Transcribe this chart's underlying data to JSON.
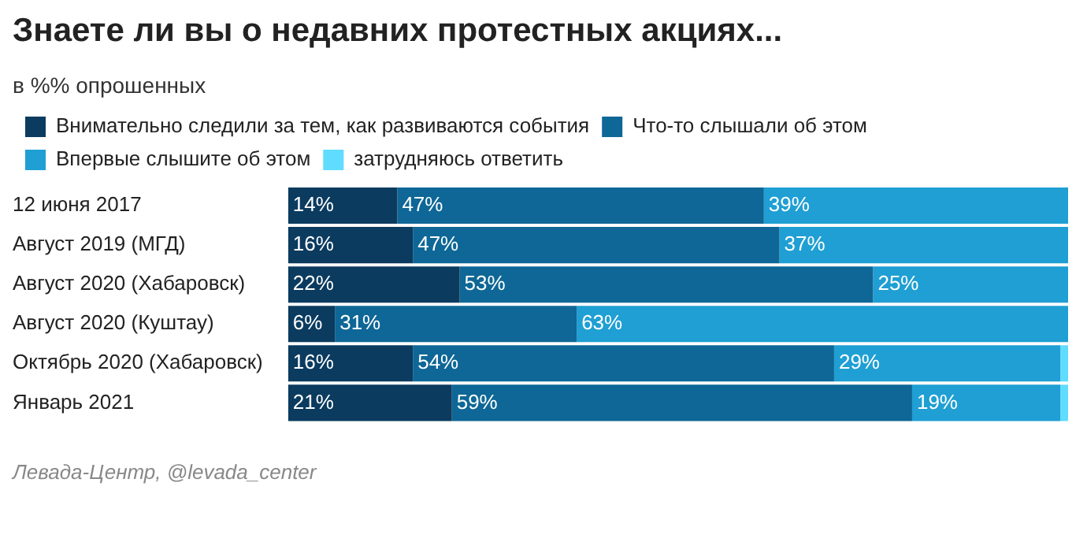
{
  "chart_data": {
    "type": "bar",
    "orientation": "horizontal",
    "stacked": true,
    "title": "Знаете ли вы о недавних протестных акциях...",
    "subtitle": "в %% опрошенных",
    "categories": [
      "12 июня 2017",
      "Август 2019 (МГД)",
      "Август 2020 (Хабаровск)",
      "Август 2020 (Куштау)",
      "Октябрь 2020 (Хабаровск)",
      "Январь 2021"
    ],
    "series": [
      {
        "name": "Внимательно следили за тем, как развиваются события",
        "color": "#0b3b5f",
        "values": [
          14,
          16,
          22,
          6,
          16,
          21
        ],
        "value_labels": [
          "14%",
          "16%",
          "22%",
          "6%",
          "16%",
          "21%"
        ]
      },
      {
        "name": "Что-то слышали об этом",
        "color": "#0e6796",
        "values": [
          47,
          47,
          53,
          31,
          54,
          59
        ],
        "value_labels": [
          "47%",
          "47%",
          "53%",
          "31%",
          "54%",
          "59%"
        ]
      },
      {
        "name": "Впервые слышите об этом",
        "color": "#1f9fd3",
        "values": [
          39,
          37,
          25,
          63,
          29,
          19
        ],
        "value_labels": [
          "39%",
          "37%",
          "25%",
          "63%",
          "29%",
          "19%"
        ]
      },
      {
        "name": "затрудняюсь ответить",
        "color": "#5fdcff",
        "values": [
          null,
          null,
          null,
          null,
          1,
          1
        ]
      }
    ],
    "legend": "top",
    "grid": false,
    "tick_labels": "y",
    "annotations": [
      "Левада-Центр, @levada_center"
    ]
  }
}
